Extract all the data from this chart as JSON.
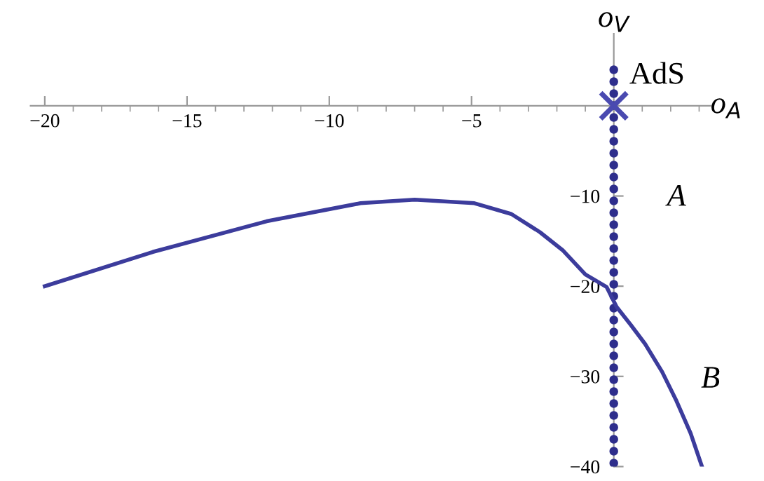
{
  "chart_data": {
    "type": "line",
    "xlabel": "o$_{A}$",
    "ylabel": "o$_{V}$",
    "xlim": [
      -20.5,
      3.4
    ],
    "ylim": [
      -40,
      8
    ],
    "xticks": [
      -20,
      -15,
      -10,
      -5
    ],
    "yticks": [
      -10,
      -20,
      -30,
      -40
    ],
    "grid": false,
    "series": [
      {
        "color": "#3c3c9c",
        "line_style": "solid",
        "x": [
          -20,
          -16.2,
          -12.2,
          -8.9,
          -7.0,
          -4.9,
          -3.6,
          -2.6,
          -1.8,
          -1.0,
          -0.25,
          0.1,
          0.6,
          1.1,
          1.7,
          2.2,
          2.7,
          3.1
        ],
        "values": [
          -20,
          -16.2,
          -12.8,
          -10.8,
          -10.4,
          -10.8,
          -12.0,
          -14.0,
          -16.0,
          -18.7,
          -20.1,
          -22.3,
          -24.3,
          -26.4,
          -29.5,
          -32.7,
          -36.3,
          -40
        ]
      },
      {
        "type": "line",
        "color": "#2e2e8c",
        "line_style": "dotted",
        "x": [
          0,
          0
        ],
        "values": [
          4,
          -40
        ]
      },
      {
        "type": "scatter",
        "color": "#4a4ab0",
        "marker": "cross",
        "x": [
          0
        ],
        "values": [
          0
        ]
      }
    ],
    "annotations": [
      {
        "text": "AdS",
        "x": 0,
        "y": 0
      },
      "A",
      "B"
    ]
  }
}
